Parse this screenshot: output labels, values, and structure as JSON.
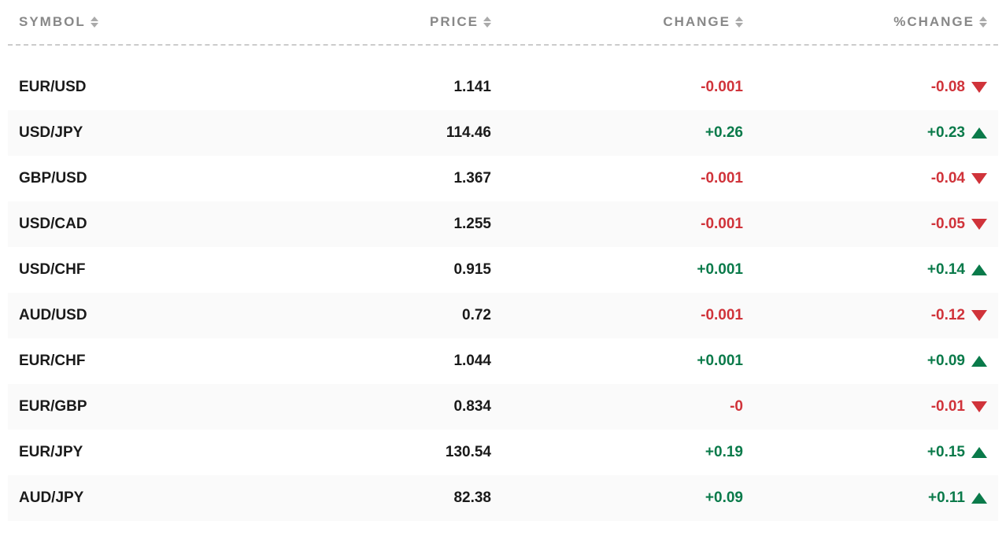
{
  "table": {
    "columns": {
      "symbol": "SYMBOL",
      "price": "PRICE",
      "change": "CHANGE",
      "pctchange": "%CHANGE"
    },
    "rows": [
      {
        "symbol": "EUR/USD",
        "price": "1.141",
        "change": "-0.001",
        "pctchange": "-0.08",
        "direction": "down"
      },
      {
        "symbol": "USD/JPY",
        "price": "114.46",
        "change": "+0.26",
        "pctchange": "+0.23",
        "direction": "up"
      },
      {
        "symbol": "GBP/USD",
        "price": "1.367",
        "change": "-0.001",
        "pctchange": "-0.04",
        "direction": "down"
      },
      {
        "symbol": "USD/CAD",
        "price": "1.255",
        "change": "-0.001",
        "pctchange": "-0.05",
        "direction": "down"
      },
      {
        "symbol": "USD/CHF",
        "price": "0.915",
        "change": "+0.001",
        "pctchange": "+0.14",
        "direction": "up"
      },
      {
        "symbol": "AUD/USD",
        "price": "0.72",
        "change": "-0.001",
        "pctchange": "-0.12",
        "direction": "down"
      },
      {
        "symbol": "EUR/CHF",
        "price": "1.044",
        "change": "+0.001",
        "pctchange": "+0.09",
        "direction": "up"
      },
      {
        "symbol": "EUR/GBP",
        "price": "0.834",
        "change": "-0",
        "pctchange": "-0.01",
        "direction": "down"
      },
      {
        "symbol": "EUR/JPY",
        "price": "130.54",
        "change": "+0.19",
        "pctchange": "+0.15",
        "direction": "up"
      },
      {
        "symbol": "AUD/JPY",
        "price": "82.38",
        "change": "+0.09",
        "pctchange": "+0.11",
        "direction": "up"
      }
    ],
    "colors": {
      "positive": "#0a7a4a",
      "negative": "#d0333a",
      "header_text": "#888888",
      "body_text": "#1a1a1a",
      "row_alt_bg": "#fafafa",
      "background": "#ffffff",
      "divider": "#cccccc"
    },
    "typography": {
      "header_fontsize": 17,
      "header_letter_spacing": 2,
      "body_fontsize": 19,
      "font_weight": 700
    }
  }
}
